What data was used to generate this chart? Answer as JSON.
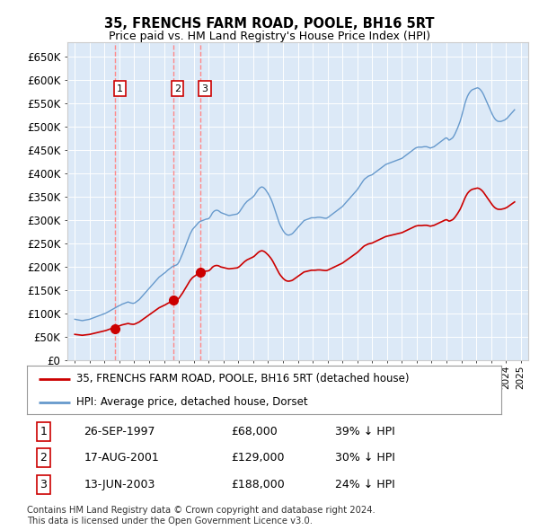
{
  "title": "35, FRENCHS FARM ROAD, POOLE, BH16 5RT",
  "subtitle": "Price paid vs. HM Land Registry's House Price Index (HPI)",
  "background_color": "#dce9f7",
  "hpi_color": "#6699cc",
  "price_color": "#cc0000",
  "vline_color": "#ff8888",
  "ylim": [
    0,
    680000
  ],
  "yticks": [
    0,
    50000,
    100000,
    150000,
    200000,
    250000,
    300000,
    350000,
    400000,
    450000,
    500000,
    550000,
    600000,
    650000
  ],
  "ytick_labels": [
    "£0",
    "£50K",
    "£100K",
    "£150K",
    "£200K",
    "£250K",
    "£300K",
    "£350K",
    "£400K",
    "£450K",
    "£500K",
    "£550K",
    "£600K",
    "£650K"
  ],
  "xmin": 1994.5,
  "xmax": 2025.5,
  "legend_label1": "35, FRENCHS FARM ROAD, POOLE, BH16 5RT (detached house)",
  "legend_label2": "HPI: Average price, detached house, Dorset",
  "transactions": [
    {
      "label": "1",
      "year": 1997.73,
      "price": 68000,
      "date": "26-SEP-1997",
      "pct": "39%"
    },
    {
      "label": "2",
      "year": 2001.62,
      "price": 129000,
      "date": "17-AUG-2001",
      "pct": "30%"
    },
    {
      "label": "3",
      "year": 2003.45,
      "price": 188000,
      "date": "13-JUN-2003",
      "pct": "24%"
    }
  ],
  "footnote1": "Contains HM Land Registry data © Crown copyright and database right 2024.",
  "footnote2": "This data is licensed under the Open Government Licence v3.0.",
  "hpi_years": [
    1995.0,
    1995.083,
    1995.167,
    1995.25,
    1995.333,
    1995.417,
    1995.5,
    1995.583,
    1995.667,
    1995.75,
    1995.833,
    1995.917,
    1996.0,
    1996.083,
    1996.167,
    1996.25,
    1996.333,
    1996.417,
    1996.5,
    1996.583,
    1996.667,
    1996.75,
    1996.833,
    1996.917,
    1997.0,
    1997.083,
    1997.167,
    1997.25,
    1997.333,
    1997.417,
    1997.5,
    1997.583,
    1997.667,
    1997.75,
    1997.833,
    1997.917,
    1998.0,
    1998.083,
    1998.167,
    1998.25,
    1998.333,
    1998.417,
    1998.5,
    1998.583,
    1998.667,
    1998.75,
    1998.833,
    1998.917,
    1999.0,
    1999.083,
    1999.167,
    1999.25,
    1999.333,
    1999.417,
    1999.5,
    1999.583,
    1999.667,
    1999.75,
    1999.833,
    1999.917,
    2000.0,
    2000.083,
    2000.167,
    2000.25,
    2000.333,
    2000.417,
    2000.5,
    2000.583,
    2000.667,
    2000.75,
    2000.833,
    2000.917,
    2001.0,
    2001.083,
    2001.167,
    2001.25,
    2001.333,
    2001.417,
    2001.5,
    2001.583,
    2001.667,
    2001.75,
    2001.833,
    2001.917,
    2002.0,
    2002.083,
    2002.167,
    2002.25,
    2002.333,
    2002.417,
    2002.5,
    2002.583,
    2002.667,
    2002.75,
    2002.833,
    2002.917,
    2003.0,
    2003.083,
    2003.167,
    2003.25,
    2003.333,
    2003.417,
    2003.5,
    2003.583,
    2003.667,
    2003.75,
    2003.833,
    2003.917,
    2004.0,
    2004.083,
    2004.167,
    2004.25,
    2004.333,
    2004.417,
    2004.5,
    2004.583,
    2004.667,
    2004.75,
    2004.833,
    2004.917,
    2005.0,
    2005.083,
    2005.167,
    2005.25,
    2005.333,
    2005.417,
    2005.5,
    2005.583,
    2005.667,
    2005.75,
    2005.833,
    2005.917,
    2006.0,
    2006.083,
    2006.167,
    2006.25,
    2006.333,
    2006.417,
    2006.5,
    2006.583,
    2006.667,
    2006.75,
    2006.833,
    2006.917,
    2007.0,
    2007.083,
    2007.167,
    2007.25,
    2007.333,
    2007.417,
    2007.5,
    2007.583,
    2007.667,
    2007.75,
    2007.833,
    2007.917,
    2008.0,
    2008.083,
    2008.167,
    2008.25,
    2008.333,
    2008.417,
    2008.5,
    2008.583,
    2008.667,
    2008.75,
    2008.833,
    2008.917,
    2009.0,
    2009.083,
    2009.167,
    2009.25,
    2009.333,
    2009.417,
    2009.5,
    2009.583,
    2009.667,
    2009.75,
    2009.833,
    2009.917,
    2010.0,
    2010.083,
    2010.167,
    2010.25,
    2010.333,
    2010.417,
    2010.5,
    2010.583,
    2010.667,
    2010.75,
    2010.833,
    2010.917,
    2011.0,
    2011.083,
    2011.167,
    2011.25,
    2011.333,
    2011.417,
    2011.5,
    2011.583,
    2011.667,
    2011.75,
    2011.833,
    2011.917,
    2012.0,
    2012.083,
    2012.167,
    2012.25,
    2012.333,
    2012.417,
    2012.5,
    2012.583,
    2012.667,
    2012.75,
    2012.833,
    2012.917,
    2013.0,
    2013.083,
    2013.167,
    2013.25,
    2013.333,
    2013.417,
    2013.5,
    2013.583,
    2013.667,
    2013.75,
    2013.833,
    2013.917,
    2014.0,
    2014.083,
    2014.167,
    2014.25,
    2014.333,
    2014.417,
    2014.5,
    2014.583,
    2014.667,
    2014.75,
    2014.833,
    2014.917,
    2015.0,
    2015.083,
    2015.167,
    2015.25,
    2015.333,
    2015.417,
    2015.5,
    2015.583,
    2015.667,
    2015.75,
    2015.833,
    2015.917,
    2016.0,
    2016.083,
    2016.167,
    2016.25,
    2016.333,
    2016.417,
    2016.5,
    2016.583,
    2016.667,
    2016.75,
    2016.833,
    2016.917,
    2017.0,
    2017.083,
    2017.167,
    2017.25,
    2017.333,
    2017.417,
    2017.5,
    2017.583,
    2017.667,
    2017.75,
    2017.833,
    2017.917,
    2018.0,
    2018.083,
    2018.167,
    2018.25,
    2018.333,
    2018.417,
    2018.5,
    2018.583,
    2018.667,
    2018.75,
    2018.833,
    2018.917,
    2019.0,
    2019.083,
    2019.167,
    2019.25,
    2019.333,
    2019.417,
    2019.5,
    2019.583,
    2019.667,
    2019.75,
    2019.833,
    2019.917,
    2020.0,
    2020.083,
    2020.167,
    2020.25,
    2020.333,
    2020.417,
    2020.5,
    2020.583,
    2020.667,
    2020.75,
    2020.833,
    2020.917,
    2021.0,
    2021.083,
    2021.167,
    2021.25,
    2021.333,
    2021.417,
    2021.5,
    2021.583,
    2021.667,
    2021.75,
    2021.833,
    2021.917,
    2022.0,
    2022.083,
    2022.167,
    2022.25,
    2022.333,
    2022.417,
    2022.5,
    2022.583,
    2022.667,
    2022.75,
    2022.833,
    2022.917,
    2023.0,
    2023.083,
    2023.167,
    2023.25,
    2023.333,
    2023.417,
    2023.5,
    2023.583,
    2023.667,
    2023.75,
    2023.833,
    2023.917,
    2024.0,
    2024.083,
    2024.167,
    2024.25,
    2024.333,
    2024.417,
    2024.5,
    2024.583
  ],
  "hpi_values": [
    88000,
    87500,
    87000,
    86500,
    86000,
    85500,
    85000,
    85500,
    86000,
    86500,
    87000,
    87500,
    88000,
    89000,
    90000,
    91000,
    92000,
    93000,
    94000,
    95000,
    96000,
    97000,
    98000,
    99000,
    100000,
    101000,
    102500,
    104000,
    105500,
    107000,
    108500,
    110000,
    111500,
    113000,
    114500,
    116000,
    117000,
    118500,
    120000,
    121000,
    122000,
    123000,
    124000,
    125000,
    124000,
    123000,
    122500,
    122000,
    122500,
    124000,
    126000,
    128000,
    130000,
    133000,
    136000,
    139000,
    142000,
    145000,
    148000,
    151000,
    154000,
    157000,
    160000,
    163000,
    166000,
    169000,
    172000,
    175000,
    178000,
    180000,
    182000,
    184000,
    186000,
    188000,
    190500,
    193000,
    195000,
    197000,
    199000,
    201000,
    202000,
    203000,
    204000,
    206000,
    210000,
    216000,
    222000,
    228000,
    235000,
    242000,
    249000,
    256000,
    263000,
    270000,
    275000,
    280000,
    283000,
    286000,
    289000,
    292000,
    295000,
    297000,
    298000,
    299000,
    300000,
    301000,
    302000,
    302500,
    303000,
    306000,
    310000,
    315000,
    318000,
    320000,
    321000,
    321000,
    320000,
    318000,
    316000,
    315000,
    314000,
    313000,
    312000,
    311000,
    310000,
    310000,
    310500,
    311000,
    311500,
    312000,
    312500,
    313000,
    315000,
    318000,
    322000,
    326000,
    330000,
    334000,
    337000,
    340000,
    342000,
    344000,
    346000,
    348000,
    350000,
    353000,
    357000,
    361000,
    365000,
    368000,
    370000,
    371000,
    370000,
    368000,
    365000,
    361000,
    357000,
    352000,
    347000,
    341000,
    334000,
    326000,
    318000,
    310000,
    302000,
    294000,
    288000,
    283000,
    278000,
    274000,
    271000,
    269000,
    268000,
    268000,
    269000,
    270000,
    272000,
    275000,
    278000,
    281000,
    284000,
    287000,
    290000,
    293000,
    296000,
    299000,
    300000,
    301000,
    302000,
    303000,
    304000,
    305000,
    305000,
    305000,
    305000,
    305500,
    306000,
    306000,
    306000,
    305500,
    305000,
    304500,
    304000,
    304000,
    305000,
    307000,
    309000,
    311000,
    313000,
    315000,
    317000,
    319000,
    321000,
    323000,
    325000,
    327000,
    329000,
    332000,
    335000,
    338000,
    341000,
    344000,
    347000,
    350000,
    353000,
    356000,
    359000,
    362000,
    365000,
    369000,
    373000,
    377000,
    381000,
    385000,
    388000,
    390000,
    392000,
    394000,
    395000,
    396000,
    397000,
    399000,
    401000,
    403000,
    405000,
    407000,
    409000,
    411000,
    413000,
    415000,
    417000,
    419000,
    420000,
    421000,
    422000,
    423000,
    424000,
    425000,
    426000,
    427000,
    428000,
    429000,
    430000,
    431000,
    432000,
    434000,
    436000,
    438000,
    440000,
    442000,
    444000,
    446000,
    448000,
    450000,
    452000,
    454000,
    455000,
    456000,
    456000,
    456000,
    456000,
    456500,
    457000,
    457000,
    457000,
    456000,
    455000,
    454000,
    455000,
    456000,
    457000,
    459000,
    461000,
    463000,
    465000,
    467000,
    469000,
    471000,
    473000,
    475000,
    476000,
    474000,
    471000,
    472000,
    474000,
    476000,
    480000,
    485000,
    491000,
    497000,
    504000,
    511000,
    520000,
    530000,
    540000,
    550000,
    558000,
    565000,
    570000,
    574000,
    577000,
    579000,
    580000,
    581000,
    582000,
    583000,
    582000,
    580000,
    577000,
    573000,
    568000,
    562000,
    556000,
    550000,
    544000,
    538000,
    532000,
    526000,
    521000,
    517000,
    514000,
    512000,
    511000,
    511000,
    511000,
    512000,
    513000,
    514000,
    516000,
    518000,
    521000,
    524000,
    527000,
    530000,
    533000,
    536000
  ]
}
